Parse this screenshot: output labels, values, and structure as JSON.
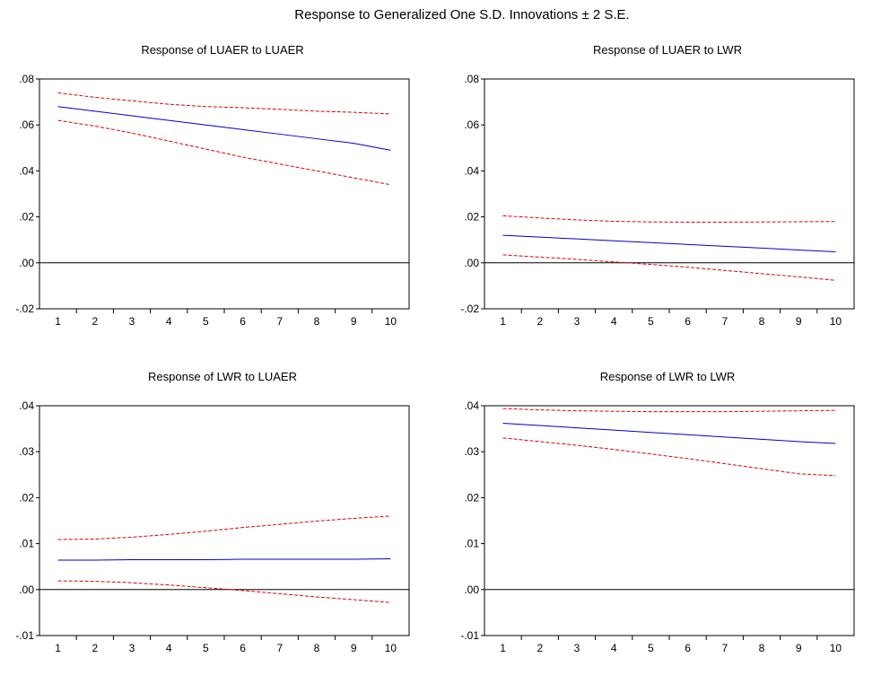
{
  "title": "Response to Generalized One S.D. Innovations ± 2 S.E.",
  "colors": {
    "response": "#0000cc",
    "band": "#dd0000",
    "zero": "#000000"
  },
  "chart_data": [
    {
      "type": "line",
      "title": "Response of LUAER to LUAER",
      "x": [
        1,
        2,
        3,
        4,
        5,
        6,
        7,
        8,
        9,
        10
      ],
      "xticks": [
        "1",
        "2",
        "3",
        "4",
        "5",
        "6",
        "7",
        "8",
        "9",
        "10"
      ],
      "ylim": [
        -0.02,
        0.08
      ],
      "yticks": [
        -0.02,
        0.0,
        0.02,
        0.04,
        0.06,
        0.08
      ],
      "ytick_labels": [
        "-.02",
        ".00",
        ".02",
        ".04",
        ".06",
        ".08"
      ],
      "series": [
        {
          "role": "response",
          "values": [
            0.068,
            0.066,
            0.064,
            0.062,
            0.06,
            0.058,
            0.056,
            0.054,
            0.052,
            0.049
          ]
        },
        {
          "role": "upper",
          "values": [
            0.074,
            0.072,
            0.0705,
            0.069,
            0.068,
            0.0675,
            0.0668,
            0.066,
            0.0655,
            0.0648
          ]
        },
        {
          "role": "lower",
          "values": [
            0.062,
            0.0595,
            0.0565,
            0.053,
            0.0495,
            0.046,
            0.043,
            0.04,
            0.037,
            0.034
          ]
        }
      ],
      "zero_line": 0
    },
    {
      "type": "line",
      "title": "Response of LUAER to LWR",
      "x": [
        1,
        2,
        3,
        4,
        5,
        6,
        7,
        8,
        9,
        10
      ],
      "xticks": [
        "1",
        "2",
        "3",
        "4",
        "5",
        "6",
        "7",
        "8",
        "9",
        "10"
      ],
      "ylim": [
        -0.02,
        0.08
      ],
      "yticks": [
        -0.02,
        0.0,
        0.02,
        0.04,
        0.06,
        0.08
      ],
      "ytick_labels": [
        "-.02",
        ".00",
        ".02",
        ".04",
        ".06",
        ".08"
      ],
      "series": [
        {
          "role": "response",
          "values": [
            0.012,
            0.0112,
            0.0104,
            0.0096,
            0.0088,
            0.008,
            0.0072,
            0.0064,
            0.0056,
            0.0048
          ]
        },
        {
          "role": "upper",
          "values": [
            0.0205,
            0.0195,
            0.0187,
            0.0181,
            0.0178,
            0.0177,
            0.0177,
            0.0178,
            0.0179,
            0.018
          ]
        },
        {
          "role": "lower",
          "values": [
            0.0035,
            0.0025,
            0.0015,
            0.0004,
            -0.0007,
            -0.0019,
            -0.0033,
            -0.0047,
            -0.0061,
            -0.0076
          ]
        }
      ],
      "zero_line": 0
    },
    {
      "type": "line",
      "title": "Response of LWR to LUAER",
      "x": [
        1,
        2,
        3,
        4,
        5,
        6,
        7,
        8,
        9,
        10
      ],
      "xticks": [
        "1",
        "2",
        "3",
        "4",
        "5",
        "6",
        "7",
        "8",
        "9",
        "10"
      ],
      "ylim": [
        -0.01,
        0.04
      ],
      "yticks": [
        -0.01,
        0.0,
        0.01,
        0.02,
        0.03,
        0.04
      ],
      "ytick_labels": [
        "-.01",
        ".00",
        ".01",
        ".02",
        ".03",
        ".04"
      ],
      "series": [
        {
          "role": "response",
          "values": [
            0.0064,
            0.0064,
            0.0065,
            0.0065,
            0.0065,
            0.0066,
            0.0066,
            0.0066,
            0.0066,
            0.0067
          ]
        },
        {
          "role": "upper",
          "values": [
            0.0109,
            0.011,
            0.0114,
            0.012,
            0.0127,
            0.0135,
            0.0142,
            0.0149,
            0.0155,
            0.016
          ]
        },
        {
          "role": "lower",
          "values": [
            0.0019,
            0.0018,
            0.0015,
            0.001,
            0.0004,
            -0.0002,
            -0.0009,
            -0.0016,
            -0.0022,
            -0.0028
          ]
        }
      ],
      "zero_line": 0
    },
    {
      "type": "line",
      "title": "Response of LWR to LWR",
      "x": [
        1,
        2,
        3,
        4,
        5,
        6,
        7,
        8,
        9,
        10
      ],
      "xticks": [
        "1",
        "2",
        "3",
        "4",
        "5",
        "6",
        "7",
        "8",
        "9",
        "10"
      ],
      "ylim": [
        -0.01,
        0.04
      ],
      "yticks": [
        -0.01,
        0.0,
        0.01,
        0.02,
        0.03,
        0.04
      ],
      "ytick_labels": [
        "-.01",
        ".00",
        ".01",
        ".02",
        ".03",
        ".04"
      ],
      "series": [
        {
          "role": "response",
          "values": [
            0.0362,
            0.0357,
            0.0352,
            0.0347,
            0.0342,
            0.0337,
            0.0332,
            0.0327,
            0.0322,
            0.0318
          ]
        },
        {
          "role": "upper",
          "values": [
            0.0394,
            0.0391,
            0.0389,
            0.0388,
            0.0387,
            0.0387,
            0.0387,
            0.0388,
            0.0389,
            0.039
          ]
        },
        {
          "role": "lower",
          "values": [
            0.033,
            0.0322,
            0.0314,
            0.0305,
            0.0295,
            0.0285,
            0.0274,
            0.0263,
            0.0252,
            0.0248
          ]
        }
      ],
      "zero_line": 0
    }
  ]
}
